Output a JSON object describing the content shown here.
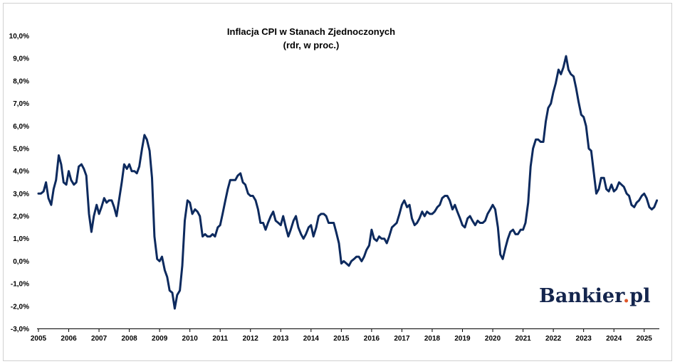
{
  "chart_data": {
    "type": "line",
    "title": "Inflacja CPI w Stanach Zjednoczonych",
    "subtitle": "(rdr, w proc.)",
    "xlabel": "",
    "ylabel": "",
    "xlim": [
      2005,
      2025.5
    ],
    "ylim": [
      -3,
      10
    ],
    "x_tick_labels": [
      "2005",
      "2006",
      "2007",
      "2008",
      "2009",
      "2010",
      "2011",
      "2012",
      "2013",
      "2014",
      "2015",
      "2016",
      "2017",
      "2018",
      "2019",
      "2020",
      "2021",
      "2022",
      "2023",
      "2024",
      "2025"
    ],
    "y_tick_labels": [
      "-3,0%",
      "-2,0%",
      "-1,0%",
      "0,0%",
      "1,0%",
      "2,0%",
      "3,0%",
      "4,0%",
      "5,0%",
      "6,0%",
      "7,0%",
      "8,0%",
      "9,0%",
      "10,0%"
    ],
    "grid": false,
    "legend": "none",
    "series": [
      {
        "color": "#0d2a5e",
        "points": [
          [
            2005.0,
            3.0
          ],
          [
            2005.08,
            3.0
          ],
          [
            2005.17,
            3.1
          ],
          [
            2005.25,
            3.5
          ],
          [
            2005.33,
            2.8
          ],
          [
            2005.42,
            2.5
          ],
          [
            2005.5,
            3.2
          ],
          [
            2005.58,
            3.6
          ],
          [
            2005.67,
            4.7
          ],
          [
            2005.75,
            4.3
          ],
          [
            2005.83,
            3.5
          ],
          [
            2005.92,
            3.4
          ],
          [
            2006.0,
            4.0
          ],
          [
            2006.08,
            3.6
          ],
          [
            2006.17,
            3.4
          ],
          [
            2006.25,
            3.5
          ],
          [
            2006.33,
            4.2
          ],
          [
            2006.42,
            4.3
          ],
          [
            2006.5,
            4.1
          ],
          [
            2006.58,
            3.8
          ],
          [
            2006.67,
            2.1
          ],
          [
            2006.75,
            1.3
          ],
          [
            2006.83,
            2.0
          ],
          [
            2006.92,
            2.5
          ],
          [
            2007.0,
            2.1
          ],
          [
            2007.08,
            2.4
          ],
          [
            2007.17,
            2.8
          ],
          [
            2007.25,
            2.6
          ],
          [
            2007.33,
            2.7
          ],
          [
            2007.42,
            2.7
          ],
          [
            2007.5,
            2.4
          ],
          [
            2007.58,
            2.0
          ],
          [
            2007.67,
            2.8
          ],
          [
            2007.75,
            3.5
          ],
          [
            2007.83,
            4.3
          ],
          [
            2007.92,
            4.1
          ],
          [
            2008.0,
            4.3
          ],
          [
            2008.08,
            4.0
          ],
          [
            2008.17,
            4.0
          ],
          [
            2008.25,
            3.9
          ],
          [
            2008.33,
            4.2
          ],
          [
            2008.42,
            5.0
          ],
          [
            2008.5,
            5.6
          ],
          [
            2008.58,
            5.4
          ],
          [
            2008.67,
            4.9
          ],
          [
            2008.75,
            3.7
          ],
          [
            2008.83,
            1.1
          ],
          [
            2008.92,
            0.1
          ],
          [
            2009.0,
            0.0
          ],
          [
            2009.08,
            0.2
          ],
          [
            2009.17,
            -0.4
          ],
          [
            2009.25,
            -0.7
          ],
          [
            2009.33,
            -1.3
          ],
          [
            2009.42,
            -1.4
          ],
          [
            2009.5,
            -2.1
          ],
          [
            2009.58,
            -1.5
          ],
          [
            2009.67,
            -1.3
          ],
          [
            2009.75,
            -0.2
          ],
          [
            2009.83,
            1.8
          ],
          [
            2009.92,
            2.7
          ],
          [
            2010.0,
            2.6
          ],
          [
            2010.08,
            2.1
          ],
          [
            2010.17,
            2.3
          ],
          [
            2010.25,
            2.2
          ],
          [
            2010.33,
            2.0
          ],
          [
            2010.42,
            1.1
          ],
          [
            2010.5,
            1.2
          ],
          [
            2010.58,
            1.1
          ],
          [
            2010.67,
            1.1
          ],
          [
            2010.75,
            1.2
          ],
          [
            2010.83,
            1.1
          ],
          [
            2010.92,
            1.5
          ],
          [
            2011.0,
            1.6
          ],
          [
            2011.08,
            2.1
          ],
          [
            2011.17,
            2.7
          ],
          [
            2011.25,
            3.2
          ],
          [
            2011.33,
            3.6
          ],
          [
            2011.42,
            3.6
          ],
          [
            2011.5,
            3.6
          ],
          [
            2011.58,
            3.8
          ],
          [
            2011.67,
            3.9
          ],
          [
            2011.75,
            3.5
          ],
          [
            2011.83,
            3.4
          ],
          [
            2011.92,
            3.0
          ],
          [
            2012.0,
            2.9
          ],
          [
            2012.08,
            2.9
          ],
          [
            2012.17,
            2.7
          ],
          [
            2012.25,
            2.3
          ],
          [
            2012.33,
            1.7
          ],
          [
            2012.42,
            1.7
          ],
          [
            2012.5,
            1.4
          ],
          [
            2012.58,
            1.7
          ],
          [
            2012.67,
            2.0
          ],
          [
            2012.75,
            2.2
          ],
          [
            2012.83,
            1.8
          ],
          [
            2012.92,
            1.7
          ],
          [
            2013.0,
            1.6
          ],
          [
            2013.08,
            2.0
          ],
          [
            2013.17,
            1.5
          ],
          [
            2013.25,
            1.1
          ],
          [
            2013.33,
            1.4
          ],
          [
            2013.42,
            1.8
          ],
          [
            2013.5,
            2.0
          ],
          [
            2013.58,
            1.5
          ],
          [
            2013.67,
            1.2
          ],
          [
            2013.75,
            1.0
          ],
          [
            2013.83,
            1.2
          ],
          [
            2013.92,
            1.5
          ],
          [
            2014.0,
            1.6
          ],
          [
            2014.08,
            1.1
          ],
          [
            2014.17,
            1.5
          ],
          [
            2014.25,
            2.0
          ],
          [
            2014.33,
            2.1
          ],
          [
            2014.42,
            2.1
          ],
          [
            2014.5,
            2.0
          ],
          [
            2014.58,
            1.7
          ],
          [
            2014.67,
            1.7
          ],
          [
            2014.75,
            1.7
          ],
          [
            2014.83,
            1.3
          ],
          [
            2014.92,
            0.8
          ],
          [
            2015.0,
            -0.1
          ],
          [
            2015.08,
            0.0
          ],
          [
            2015.17,
            -0.1
          ],
          [
            2015.25,
            -0.2
          ],
          [
            2015.33,
            0.0
          ],
          [
            2015.42,
            0.1
          ],
          [
            2015.5,
            0.2
          ],
          [
            2015.58,
            0.2
          ],
          [
            2015.67,
            0.0
          ],
          [
            2015.75,
            0.2
          ],
          [
            2015.83,
            0.5
          ],
          [
            2015.92,
            0.7
          ],
          [
            2016.0,
            1.4
          ],
          [
            2016.08,
            1.0
          ],
          [
            2016.17,
            0.9
          ],
          [
            2016.25,
            1.1
          ],
          [
            2016.33,
            1.0
          ],
          [
            2016.42,
            1.0
          ],
          [
            2016.5,
            0.8
          ],
          [
            2016.58,
            1.1
          ],
          [
            2016.67,
            1.5
          ],
          [
            2016.75,
            1.6
          ],
          [
            2016.83,
            1.7
          ],
          [
            2016.92,
            2.1
          ],
          [
            2017.0,
            2.5
          ],
          [
            2017.08,
            2.7
          ],
          [
            2017.17,
            2.4
          ],
          [
            2017.25,
            2.5
          ],
          [
            2017.33,
            1.9
          ],
          [
            2017.42,
            1.6
          ],
          [
            2017.5,
            1.7
          ],
          [
            2017.58,
            1.9
          ],
          [
            2017.67,
            2.2
          ],
          [
            2017.75,
            2.0
          ],
          [
            2017.83,
            2.2
          ],
          [
            2017.92,
            2.1
          ],
          [
            2018.0,
            2.1
          ],
          [
            2018.08,
            2.2
          ],
          [
            2018.17,
            2.4
          ],
          [
            2018.25,
            2.5
          ],
          [
            2018.33,
            2.8
          ],
          [
            2018.42,
            2.9
          ],
          [
            2018.5,
            2.9
          ],
          [
            2018.58,
            2.7
          ],
          [
            2018.67,
            2.3
          ],
          [
            2018.75,
            2.5
          ],
          [
            2018.83,
            2.2
          ],
          [
            2018.92,
            1.9
          ],
          [
            2019.0,
            1.6
          ],
          [
            2019.08,
            1.5
          ],
          [
            2019.17,
            1.9
          ],
          [
            2019.25,
            2.0
          ],
          [
            2019.33,
            1.8
          ],
          [
            2019.42,
            1.6
          ],
          [
            2019.5,
            1.8
          ],
          [
            2019.58,
            1.7
          ],
          [
            2019.67,
            1.7
          ],
          [
            2019.75,
            1.8
          ],
          [
            2019.83,
            2.1
          ],
          [
            2019.92,
            2.3
          ],
          [
            2020.0,
            2.5
          ],
          [
            2020.08,
            2.3
          ],
          [
            2020.17,
            1.5
          ],
          [
            2020.25,
            0.3
          ],
          [
            2020.33,
            0.1
          ],
          [
            2020.42,
            0.6
          ],
          [
            2020.5,
            1.0
          ],
          [
            2020.58,
            1.3
          ],
          [
            2020.67,
            1.4
          ],
          [
            2020.75,
            1.2
          ],
          [
            2020.83,
            1.2
          ],
          [
            2020.92,
            1.4
          ],
          [
            2021.0,
            1.4
          ],
          [
            2021.08,
            1.7
          ],
          [
            2021.17,
            2.6
          ],
          [
            2021.25,
            4.2
          ],
          [
            2021.33,
            5.0
          ],
          [
            2021.42,
            5.4
          ],
          [
            2021.5,
            5.4
          ],
          [
            2021.58,
            5.3
          ],
          [
            2021.67,
            5.3
          ],
          [
            2021.75,
            6.2
          ],
          [
            2021.83,
            6.8
          ],
          [
            2021.92,
            7.0
          ],
          [
            2022.0,
            7.5
          ],
          [
            2022.08,
            7.9
          ],
          [
            2022.17,
            8.5
          ],
          [
            2022.25,
            8.3
          ],
          [
            2022.33,
            8.6
          ],
          [
            2022.42,
            9.1
          ],
          [
            2022.5,
            8.5
          ],
          [
            2022.58,
            8.3
          ],
          [
            2022.67,
            8.2
          ],
          [
            2022.75,
            7.7
          ],
          [
            2022.83,
            7.1
          ],
          [
            2022.92,
            6.5
          ],
          [
            2023.0,
            6.4
          ],
          [
            2023.08,
            6.0
          ],
          [
            2023.17,
            5.0
          ],
          [
            2023.25,
            4.9
          ],
          [
            2023.33,
            4.0
          ],
          [
            2023.42,
            3.0
          ],
          [
            2023.5,
            3.2
          ],
          [
            2023.58,
            3.7
          ],
          [
            2023.67,
            3.7
          ],
          [
            2023.75,
            3.2
          ],
          [
            2023.83,
            3.1
          ],
          [
            2023.92,
            3.4
          ],
          [
            2024.0,
            3.1
          ],
          [
            2024.08,
            3.2
          ],
          [
            2024.17,
            3.5
          ],
          [
            2024.25,
            3.4
          ],
          [
            2024.33,
            3.3
          ],
          [
            2024.42,
            3.0
          ],
          [
            2024.5,
            2.9
          ],
          [
            2024.58,
            2.5
          ],
          [
            2024.67,
            2.4
          ],
          [
            2024.75,
            2.6
          ],
          [
            2024.83,
            2.7
          ],
          [
            2024.92,
            2.9
          ],
          [
            2025.0,
            3.0
          ],
          [
            2025.08,
            2.8
          ],
          [
            2025.17,
            2.4
          ],
          [
            2025.25,
            2.3
          ],
          [
            2025.33,
            2.4
          ],
          [
            2025.42,
            2.7
          ]
        ]
      }
    ]
  },
  "branding": {
    "logo_text_main": "Bankier",
    "logo_dot": ".",
    "logo_text_suffix": "pl",
    "logo_color": "#14254d",
    "logo_dot_color": "#e0572a"
  }
}
